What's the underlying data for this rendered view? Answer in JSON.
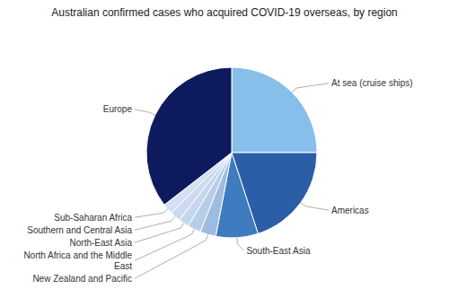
{
  "chart_data": {
    "type": "pie",
    "title": "Australian confirmed cases who acquired COVID-19 overseas, by region",
    "categories": [
      "At sea (cruise ships)",
      "Americas",
      "South-East Asia",
      "New Zealand and Pacific",
      "North Africa and the Middle\nEast",
      "North-East Asia",
      "Southern and Central Asia",
      "Sub-Saharan Africa",
      "Europe"
    ],
    "values": [
      25,
      20,
      8,
      3,
      2.5,
      2,
      2,
      2,
      35.5
    ],
    "colors": [
      "#87BEEA",
      "#2B5EA7",
      "#3E7BBF",
      "#9DBCE0",
      "#B8CDE8",
      "#C5D6EE",
      "#CCDAF0",
      "#D4E0F2",
      "#0D1B5E"
    ]
  }
}
